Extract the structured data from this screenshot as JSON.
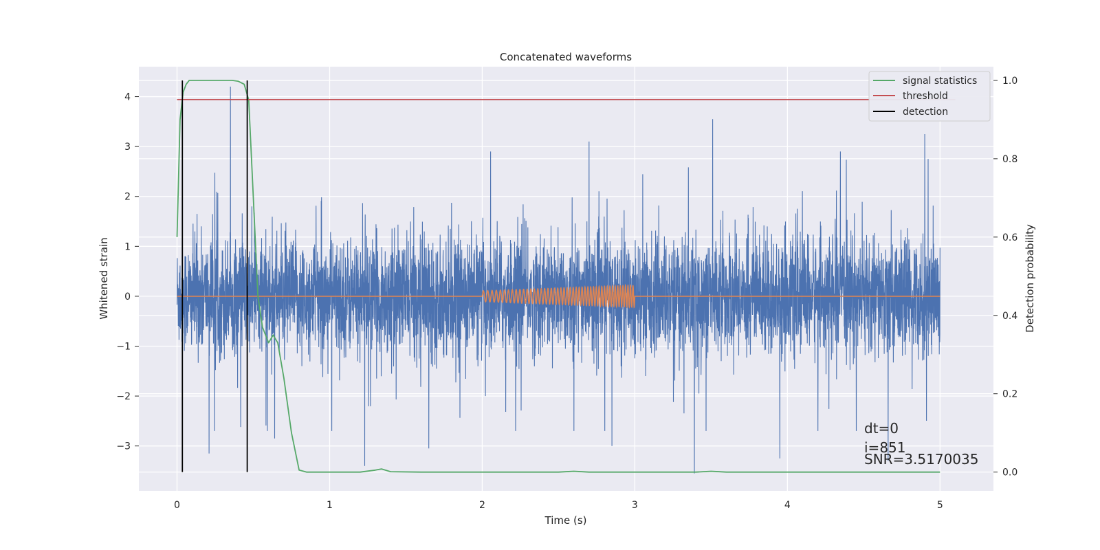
{
  "chart_data": {
    "type": "line",
    "title": "Concatenated waveforms",
    "xlabel": "Time (s)",
    "ylabel": "Whitened strain",
    "y2label": "Detection probability",
    "xlim": [
      -0.25,
      5.35
    ],
    "ylim": [
      -3.9,
      4.6
    ],
    "y2lim": [
      -0.048,
      1.035
    ],
    "xticks": [
      0,
      1,
      2,
      3,
      4,
      5
    ],
    "yticks": [
      -3,
      -2,
      -1,
      0,
      1,
      2,
      3,
      4
    ],
    "y2ticks": [
      0.0,
      0.2,
      0.4,
      0.6,
      0.8,
      1.0
    ],
    "xtick_labels": [
      "0",
      "1",
      "2",
      "3",
      "4",
      "5"
    ],
    "ytick_labels": [
      "−3",
      "−2",
      "−1",
      "0",
      "1",
      "2",
      "3",
      "4"
    ],
    "y2tick_labels": [
      "0.0",
      "0.2",
      "0.4",
      "0.6",
      "0.8",
      "1.0"
    ],
    "grid": true,
    "legend_position": "top-right",
    "background_color": "#eaeaf2",
    "series": [
      {
        "kind": "noise",
        "axis": "left",
        "color": "#4c72b0",
        "x_range": [
          0,
          5
        ],
        "amplitude_spikes": [
          {
            "x": 0.35,
            "y": 4.2
          },
          {
            "x": 0.21,
            "y": -3.15
          },
          {
            "x": 1.23,
            "y": -3.4
          },
          {
            "x": 3.51,
            "y": 3.55
          },
          {
            "x": 3.39,
            "y": -3.55
          },
          {
            "x": 4.9,
            "y": 3.25
          },
          {
            "x": 0.64,
            "y": -2.85
          },
          {
            "x": 1.65,
            "y": -3.05
          },
          {
            "x": 2.85,
            "y": -3.0
          },
          {
            "x": 3.95,
            "y": -3.25
          },
          {
            "x": 4.66,
            "y": -3.3
          },
          {
            "x": 2.7,
            "y": 3.1
          }
        ]
      },
      {
        "kind": "chirp",
        "axis": "left",
        "color": "#dd8452",
        "x_range": [
          0,
          5
        ],
        "chirp_x_range": [
          2,
          3
        ],
        "chirp_amplitude": [
          0.11,
          0.22
        ]
      },
      {
        "name": "signal statistics",
        "axis": "right",
        "color": "#55a868",
        "x": [
          0.0,
          0.02,
          0.04,
          0.06,
          0.08,
          0.1,
          0.2,
          0.3,
          0.36,
          0.4,
          0.44,
          0.47,
          0.5,
          0.53,
          0.56,
          0.6,
          0.63,
          0.66,
          0.7,
          0.75,
          0.8,
          0.85,
          1.0,
          1.2,
          1.3,
          1.34,
          1.4,
          1.6,
          2.0,
          2.5,
          2.6,
          2.7,
          3.0,
          3.4,
          3.5,
          3.6,
          4.0,
          4.5,
          5.0
        ],
        "y": [
          0.6,
          0.9,
          0.97,
          0.99,
          1.0,
          1.0,
          1.0,
          1.0,
          1.0,
          0.998,
          0.99,
          0.95,
          0.7,
          0.45,
          0.37,
          0.33,
          0.35,
          0.33,
          0.24,
          0.1,
          0.005,
          0.0,
          0.0,
          0.0,
          0.005,
          0.008,
          0.001,
          0.0,
          0.0,
          0.0,
          0.002,
          0.0,
          0.0,
          0.0,
          0.002,
          0.0,
          0.0,
          0.0,
          0.0
        ]
      },
      {
        "name": "threshold",
        "axis": "right",
        "color": "#c44e52",
        "x": [
          0.0,
          5.1
        ],
        "y": [
          0.951,
          0.951
        ]
      },
      {
        "name": "detection",
        "axis": "right",
        "color": "#000000",
        "vlines_x": [
          0.035,
          0.46
        ],
        "y_range": [
          0.0,
          1.0
        ]
      }
    ],
    "legend": [
      {
        "label": "signal statistics",
        "color": "#55a868"
      },
      {
        "label": "threshold",
        "color": "#c44e52"
      },
      {
        "label": "detection",
        "color": "#000000"
      }
    ],
    "annotations": [
      "dt=0",
      "i=851",
      "SNR=3.5170035"
    ]
  }
}
